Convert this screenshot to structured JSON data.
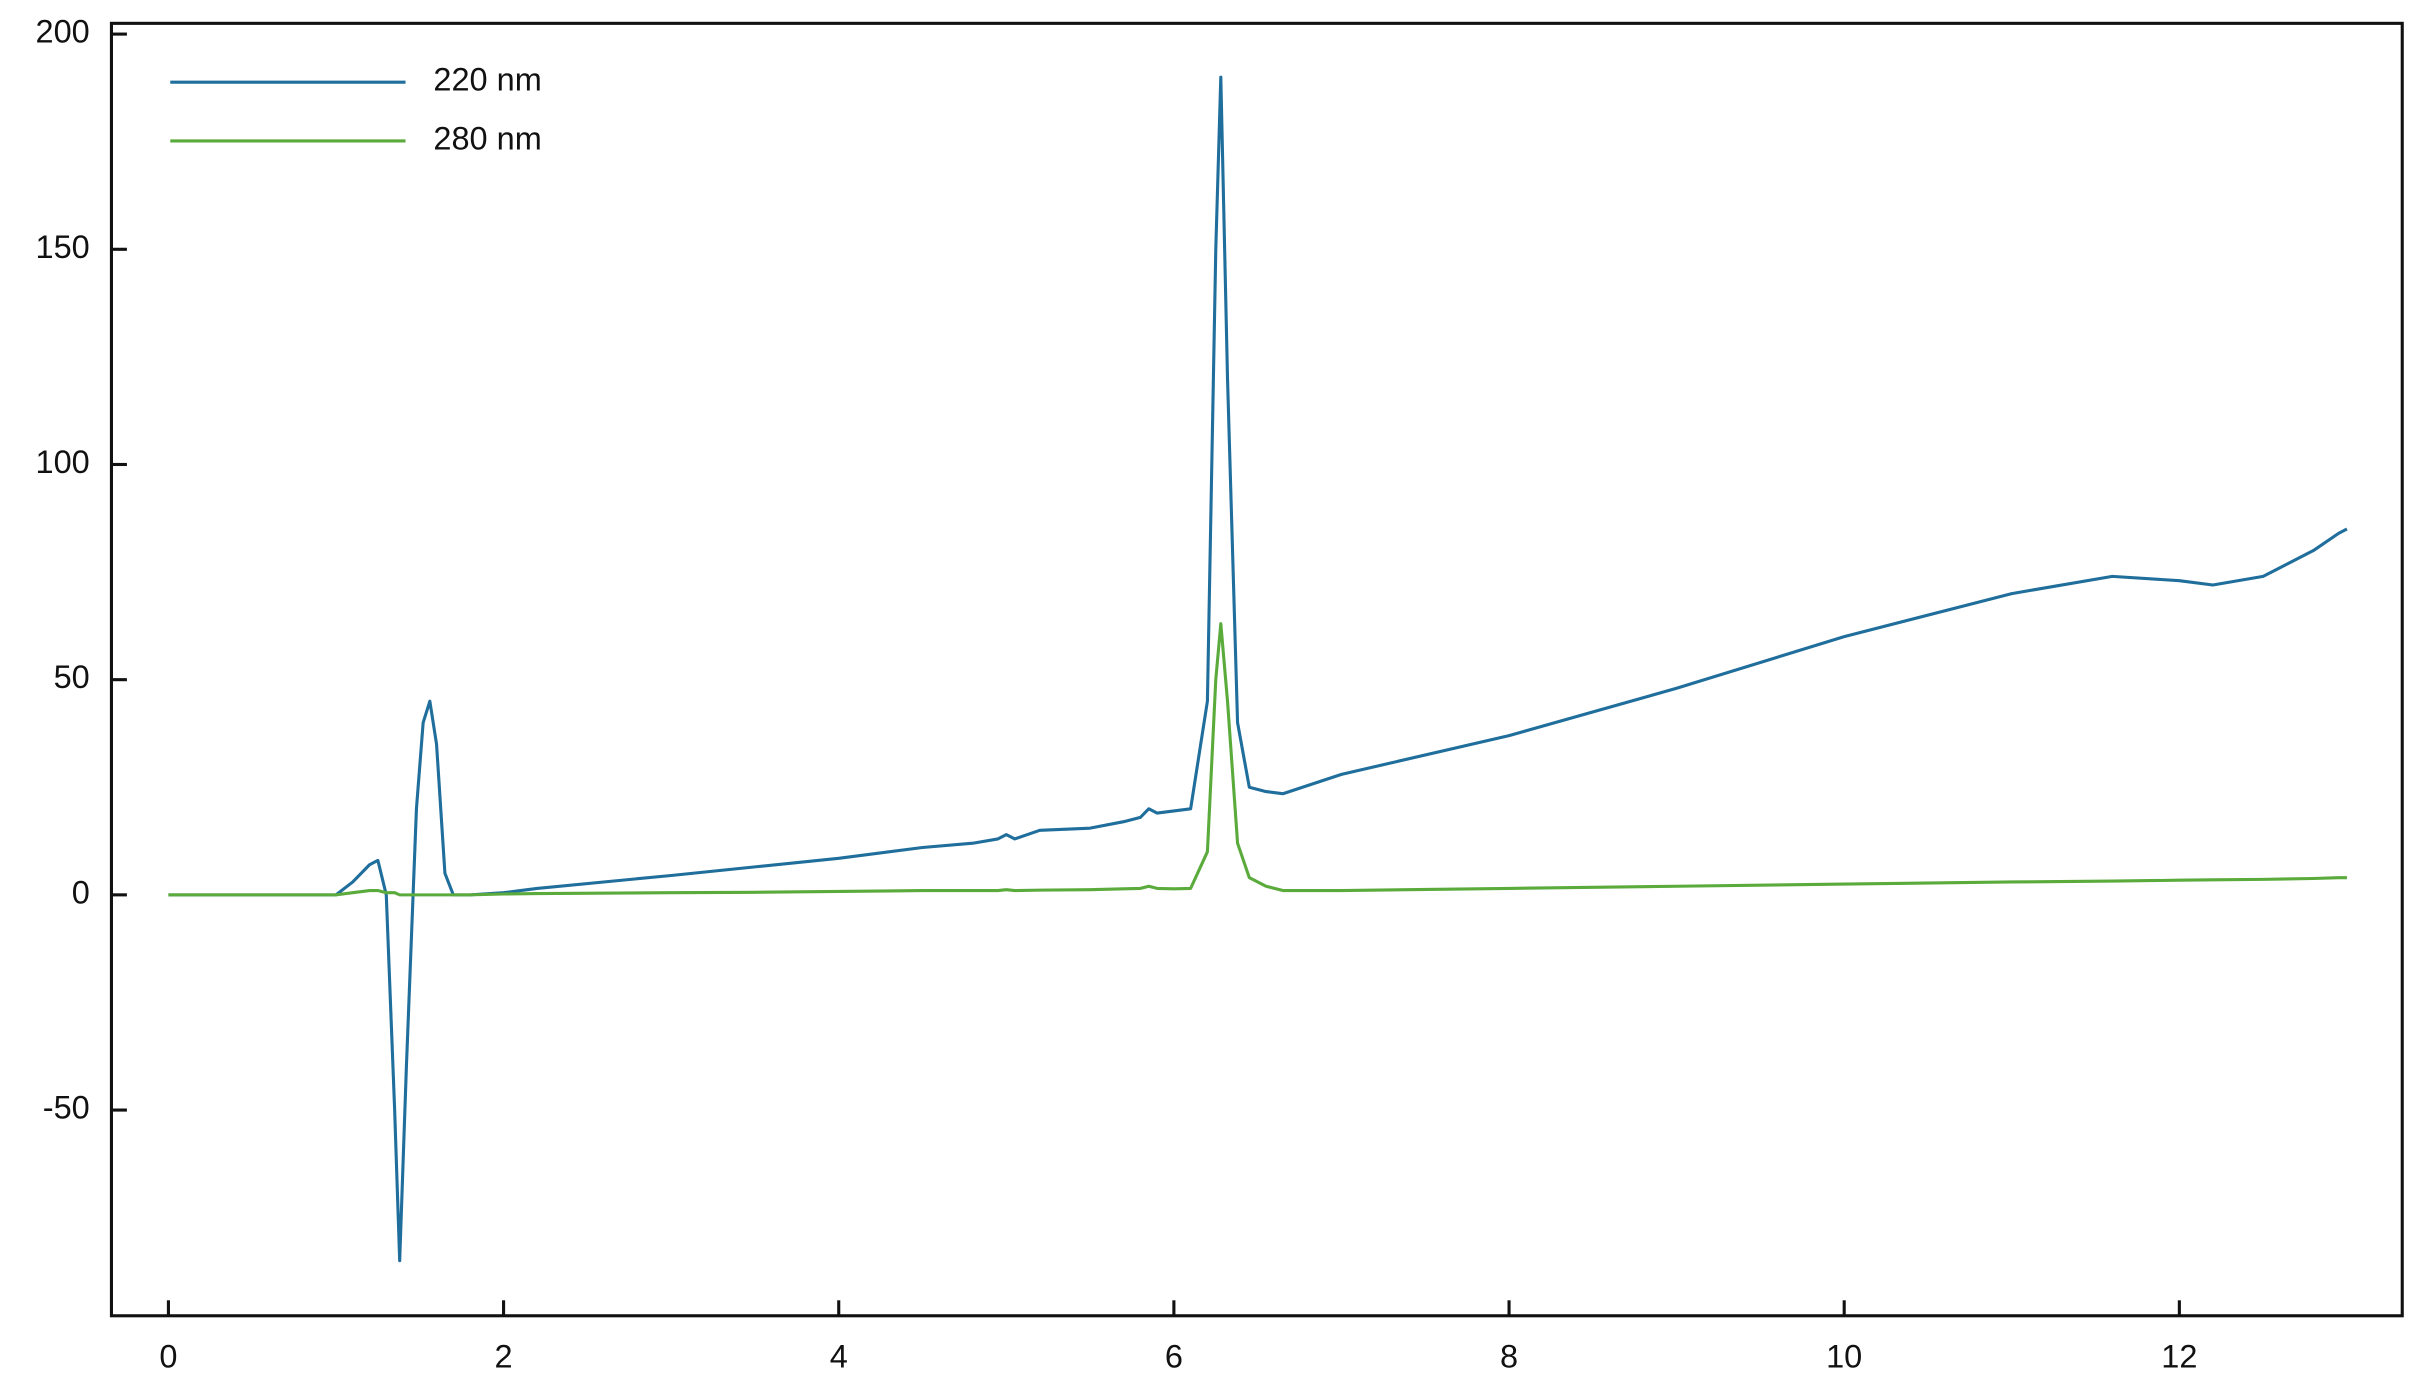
{
  "chart_data": {
    "type": "line",
    "x": [
      0,
      0.5,
      0.8,
      1.0,
      1.1,
      1.2,
      1.25,
      1.3,
      1.35,
      1.38,
      1.42,
      1.48,
      1.52,
      1.56,
      1.6,
      1.65,
      1.7,
      1.8,
      2.0,
      2.2,
      3.0,
      3.5,
      4.0,
      4.5,
      4.8,
      4.95,
      5.0,
      5.05,
      5.2,
      5.5,
      5.7,
      5.8,
      5.85,
      5.9,
      6.0,
      6.1,
      6.2,
      6.25,
      6.28,
      6.32,
      6.38,
      6.45,
      6.55,
      6.65,
      7.0,
      8.0,
      9.0,
      10.0,
      11.0,
      11.6,
      12.0,
      12.2,
      12.5,
      12.8,
      12.95,
      13.0
    ],
    "series": [
      {
        "name": "220 nm",
        "color": "#1f6e9c",
        "values": [
          0,
          0,
          0,
          0,
          3,
          7,
          8,
          0,
          -50,
          -85,
          -40,
          20,
          40,
          45,
          35,
          5,
          0,
          0,
          0.5,
          1.5,
          4.5,
          6.5,
          8.5,
          11,
          12,
          13,
          14,
          13,
          15,
          15.5,
          17,
          18,
          20,
          19,
          19.5,
          20,
          45,
          150,
          190,
          120,
          40,
          25,
          24,
          23.5,
          28,
          37,
          48,
          60,
          70,
          74,
          73,
          72,
          74,
          80,
          84,
          85
        ]
      },
      {
        "name": "280 nm",
        "color": "#5aab3c",
        "values": [
          0,
          0,
          0,
          0,
          0.5,
          1,
          1,
          0.5,
          0.5,
          0,
          0,
          0,
          0,
          0,
          0,
          0,
          0,
          0,
          0.2,
          0.3,
          0.5,
          0.6,
          0.8,
          1,
          1,
          1,
          1.2,
          1,
          1.1,
          1.2,
          1.4,
          1.5,
          2,
          1.5,
          1.4,
          1.5,
          10,
          50,
          63,
          45,
          12,
          4,
          2,
          1,
          1,
          1.5,
          2,
          2.5,
          3,
          3.2,
          3.4,
          3.5,
          3.6,
          3.8,
          4,
          4
        ]
      }
    ],
    "xlim": [
      -0.34,
      13.33
    ],
    "xticks": [
      0,
      2,
      4,
      6,
      8,
      10,
      12
    ],
    "ylim": [
      -97.8,
      202.5
    ],
    "yticks": [
      -50,
      0,
      50,
      100,
      150,
      200
    ],
    "legend": "upper left"
  }
}
